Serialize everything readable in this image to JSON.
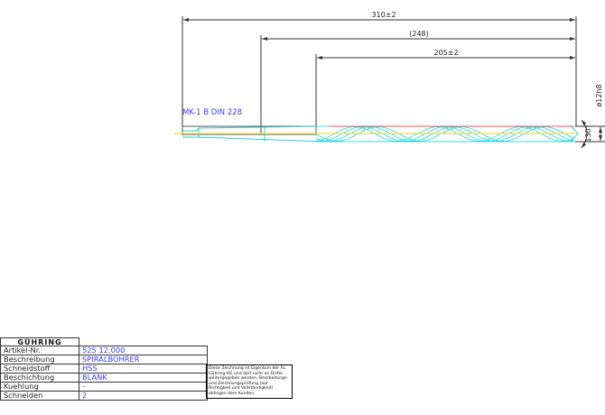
{
  "drawing": {
    "dimensions": {
      "overall": "310±2",
      "reference": "(248)",
      "flute": "205±2",
      "diameter": "ø12h8",
      "angle": "130°"
    },
    "taper_label": "MK-1 B DIN 228",
    "colors": {
      "outline": "#333333",
      "flute": "#33dddd",
      "centerline": "#f0e060",
      "hidden": "#ff5555",
      "text": "#3a3aff"
    }
  },
  "title_block": {
    "logo": "GÜHRING",
    "rows": [
      {
        "label": "Artikel-Nr.",
        "value": "525 12,000"
      },
      {
        "label": "Beschreibung",
        "value": "SPIRALBOHRER"
      },
      {
        "label": "Schneidstoff",
        "value": "HSS"
      },
      {
        "label": "Beschichtung",
        "value": "BLANK"
      },
      {
        "label": "Kuehlung",
        "value": "–"
      },
      {
        "label": "Schneiden",
        "value": "2"
      }
    ],
    "note": "Diese Zeichnung ist Eigentum der Fa. Gühring KG und darf nicht an Dritte weitergegeben werden. Bearbeitungs- und Zeichnungsprüfung (auf Richtigkeit und Vollständigkeit) obliegen dem Kunden."
  }
}
